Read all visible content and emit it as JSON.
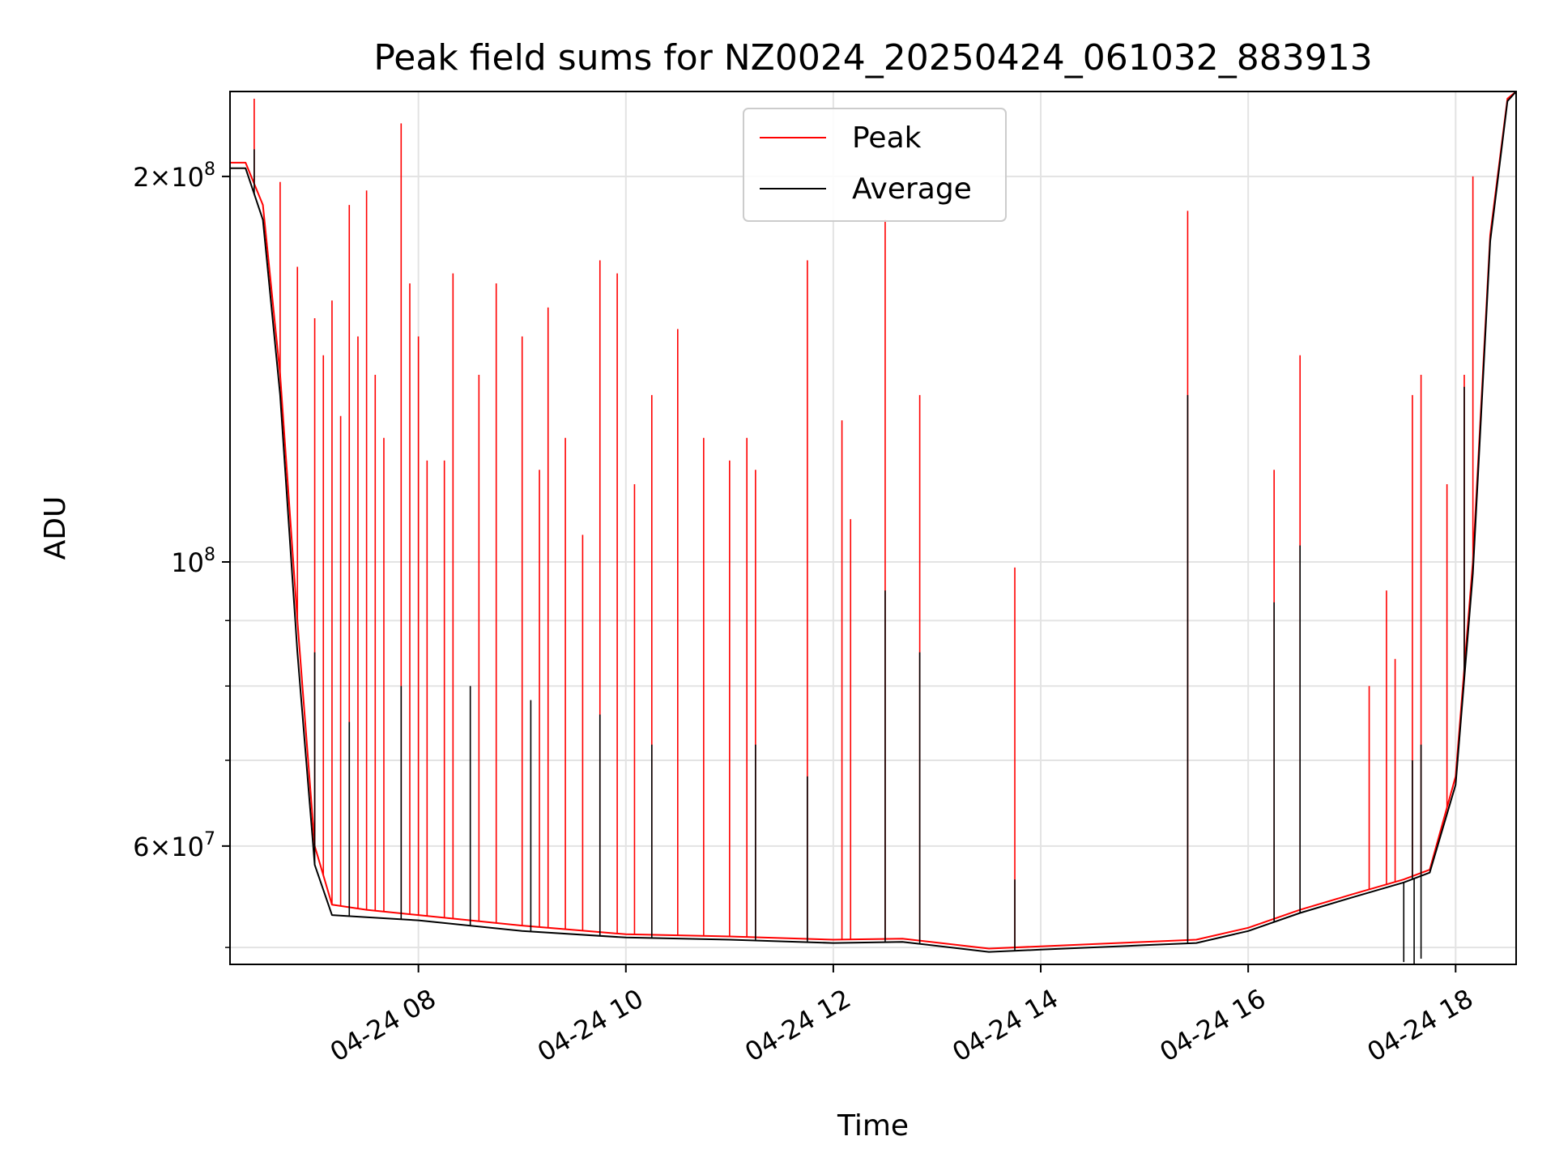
{
  "chart_data": {
    "type": "line",
    "title": "Peak field sums for NZ0024_20250424_061032_883913",
    "xlabel": "Time",
    "ylabel": "ADU",
    "y_scale": "log",
    "xlim": [
      "2025-04-24 06:11",
      "2025-04-24 18:35"
    ],
    "ylim": [
      48500000,
      233000000
    ],
    "grid": true,
    "legend_position": "top-center",
    "x_ticks": [
      {
        "time": "2025-04-24 08:00",
        "label": "04-24 08"
      },
      {
        "time": "2025-04-24 10:00",
        "label": "04-24 10"
      },
      {
        "time": "2025-04-24 12:00",
        "label": "04-24 12"
      },
      {
        "time": "2025-04-24 14:00",
        "label": "04-24 14"
      },
      {
        "time": "2025-04-24 16:00",
        "label": "04-24 16"
      },
      {
        "time": "2025-04-24 18:00",
        "label": "04-24 18"
      }
    ],
    "y_major_ticks": [
      {
        "value": 60000000,
        "mant": "6",
        "exp": "7"
      },
      {
        "value": 100000000,
        "mant": "",
        "exp": "8"
      },
      {
        "value": 200000000,
        "mant": "2",
        "exp": "8"
      }
    ],
    "y_minor_ticks": [
      50000000,
      70000000,
      80000000,
      90000000
    ],
    "series": [
      {
        "name": "Peak",
        "color": "#ff0000",
        "baseline": [
          [
            "2025-04-24 06:11",
            205000000
          ],
          [
            "2025-04-24 06:20",
            205000000
          ],
          [
            "2025-04-24 06:30",
            190000000
          ],
          [
            "2025-04-24 06:40",
            140000000
          ],
          [
            "2025-04-24 06:50",
            90000000
          ],
          [
            "2025-04-24 07:00",
            60000000
          ],
          [
            "2025-04-24 07:10",
            54000000
          ],
          [
            "2025-04-24 07:30",
            53500000
          ],
          [
            "2025-04-24 08:00",
            53000000
          ],
          [
            "2025-04-24 09:00",
            52000000
          ],
          [
            "2025-04-24 10:00",
            51200000
          ],
          [
            "2025-04-24 11:00",
            51000000
          ],
          [
            "2025-04-24 12:00",
            50700000
          ],
          [
            "2025-04-24 12:40",
            50800000
          ],
          [
            "2025-04-24 13:30",
            49900000
          ],
          [
            "2025-04-24 14:00",
            50100000
          ],
          [
            "2025-04-24 15:00",
            50500000
          ],
          [
            "2025-04-24 15:30",
            50700000
          ],
          [
            "2025-04-24 16:00",
            51800000
          ],
          [
            "2025-04-24 16:30",
            53500000
          ],
          [
            "2025-04-24 17:00",
            55000000
          ],
          [
            "2025-04-24 17:30",
            56500000
          ],
          [
            "2025-04-24 17:45",
            57500000
          ],
          [
            "2025-04-24 18:00",
            68000000
          ],
          [
            "2025-04-24 18:10",
            100000000
          ],
          [
            "2025-04-24 18:20",
            180000000
          ],
          [
            "2025-04-24 18:30",
            230000000
          ],
          [
            "2025-04-24 18:35",
            233000000
          ]
        ],
        "spikes": [
          [
            "2025-04-24 06:25",
            230000000
          ],
          [
            "2025-04-24 06:40",
            198000000
          ],
          [
            "2025-04-24 06:50",
            170000000
          ],
          [
            "2025-04-24 07:00",
            155000000
          ],
          [
            "2025-04-24 07:05",
            145000000
          ],
          [
            "2025-04-24 07:10",
            160000000
          ],
          [
            "2025-04-24 07:15",
            130000000
          ],
          [
            "2025-04-24 07:20",
            190000000
          ],
          [
            "2025-04-24 07:25",
            150000000
          ],
          [
            "2025-04-24 07:30",
            195000000
          ],
          [
            "2025-04-24 07:35",
            140000000
          ],
          [
            "2025-04-24 07:40",
            125000000
          ],
          [
            "2025-04-24 07:50",
            220000000
          ],
          [
            "2025-04-24 07:55",
            165000000
          ],
          [
            "2025-04-24 08:00",
            150000000
          ],
          [
            "2025-04-24 08:05",
            120000000
          ],
          [
            "2025-04-24 08:15",
            120000000
          ],
          [
            "2025-04-24 08:20",
            168000000
          ],
          [
            "2025-04-24 08:35",
            140000000
          ],
          [
            "2025-04-24 08:45",
            165000000
          ],
          [
            "2025-04-24 09:00",
            150000000
          ],
          [
            "2025-04-24 09:10",
            118000000
          ],
          [
            "2025-04-24 09:15",
            158000000
          ],
          [
            "2025-04-24 09:25",
            125000000
          ],
          [
            "2025-04-24 09:35",
            105000000
          ],
          [
            "2025-04-24 09:45",
            172000000
          ],
          [
            "2025-04-24 09:55",
            168000000
          ],
          [
            "2025-04-24 10:05",
            115000000
          ],
          [
            "2025-04-24 10:15",
            135000000
          ],
          [
            "2025-04-24 10:30",
            152000000
          ],
          [
            "2025-04-24 10:45",
            125000000
          ],
          [
            "2025-04-24 11:00",
            120000000
          ],
          [
            "2025-04-24 11:10",
            125000000
          ],
          [
            "2025-04-24 11:15",
            118000000
          ],
          [
            "2025-04-24 11:45",
            172000000
          ],
          [
            "2025-04-24 12:05",
            129000000
          ],
          [
            "2025-04-24 12:10",
            108000000
          ],
          [
            "2025-04-24 12:30",
            185000000
          ],
          [
            "2025-04-24 12:50",
            135000000
          ],
          [
            "2025-04-24 13:45",
            99000000
          ],
          [
            "2025-04-24 15:25",
            188000000
          ],
          [
            "2025-04-24 16:15",
            118000000
          ],
          [
            "2025-04-24 16:30",
            145000000
          ],
          [
            "2025-04-24 17:10",
            80000000
          ],
          [
            "2025-04-24 17:20",
            95000000
          ],
          [
            "2025-04-24 17:25",
            84000000
          ],
          [
            "2025-04-24 17:35",
            135000000
          ],
          [
            "2025-04-24 17:40",
            140000000
          ],
          [
            "2025-04-24 17:55",
            115000000
          ],
          [
            "2025-04-24 18:05",
            140000000
          ],
          [
            "2025-04-24 18:10",
            200000000
          ]
        ]
      },
      {
        "name": "Average",
        "color": "#000000",
        "baseline": [
          [
            "2025-04-24 06:11",
            203000000
          ],
          [
            "2025-04-24 06:20",
            203000000
          ],
          [
            "2025-04-24 06:30",
            185000000
          ],
          [
            "2025-04-24 06:40",
            135000000
          ],
          [
            "2025-04-24 06:50",
            85000000
          ],
          [
            "2025-04-24 07:00",
            58000000
          ],
          [
            "2025-04-24 07:10",
            53000000
          ],
          [
            "2025-04-24 07:30",
            52800000
          ],
          [
            "2025-04-24 08:00",
            52500000
          ],
          [
            "2025-04-24 09:00",
            51500000
          ],
          [
            "2025-04-24 10:00",
            50900000
          ],
          [
            "2025-04-24 11:00",
            50700000
          ],
          [
            "2025-04-24 12:00",
            50400000
          ],
          [
            "2025-04-24 12:40",
            50500000
          ],
          [
            "2025-04-24 13:30",
            49600000
          ],
          [
            "2025-04-24 14:00",
            49800000
          ],
          [
            "2025-04-24 15:00",
            50200000
          ],
          [
            "2025-04-24 15:30",
            50400000
          ],
          [
            "2025-04-24 16:00",
            51500000
          ],
          [
            "2025-04-24 16:30",
            53200000
          ],
          [
            "2025-04-24 17:00",
            54700000
          ],
          [
            "2025-04-24 17:30",
            56200000
          ],
          [
            "2025-04-24 17:45",
            57200000
          ],
          [
            "2025-04-24 18:00",
            67000000
          ],
          [
            "2025-04-24 18:10",
            98000000
          ],
          [
            "2025-04-24 18:20",
            178000000
          ],
          [
            "2025-04-24 18:30",
            229000000
          ],
          [
            "2025-04-24 18:35",
            233000000
          ]
        ],
        "spikes": [
          [
            "2025-04-24 06:25",
            210000000
          ],
          [
            "2025-04-24 07:00",
            85000000
          ],
          [
            "2025-04-24 07:20",
            75000000
          ],
          [
            "2025-04-24 07:50",
            80000000
          ],
          [
            "2025-04-24 08:30",
            80000000
          ],
          [
            "2025-04-24 09:05",
            78000000
          ],
          [
            "2025-04-24 09:45",
            76000000
          ],
          [
            "2025-04-24 10:15",
            72000000
          ],
          [
            "2025-04-24 11:15",
            72000000
          ],
          [
            "2025-04-24 11:45",
            68000000
          ],
          [
            "2025-04-24 12:30",
            95000000
          ],
          [
            "2025-04-24 12:50",
            85000000
          ],
          [
            "2025-04-24 13:45",
            56500000
          ],
          [
            "2025-04-24 15:25",
            135000000
          ],
          [
            "2025-04-24 16:15",
            93000000
          ],
          [
            "2025-04-24 16:30",
            103000000
          ],
          [
            "2025-04-24 17:35",
            70000000
          ],
          [
            "2025-04-24 17:40",
            72000000
          ],
          [
            "2025-04-24 18:05",
            137000000
          ]
        ],
        "dips": [
          [
            "2025-04-24 17:30",
            48700000
          ],
          [
            "2025-04-24 17:36",
            48500000
          ],
          [
            "2025-04-24 17:40",
            49000000
          ]
        ]
      }
    ]
  }
}
